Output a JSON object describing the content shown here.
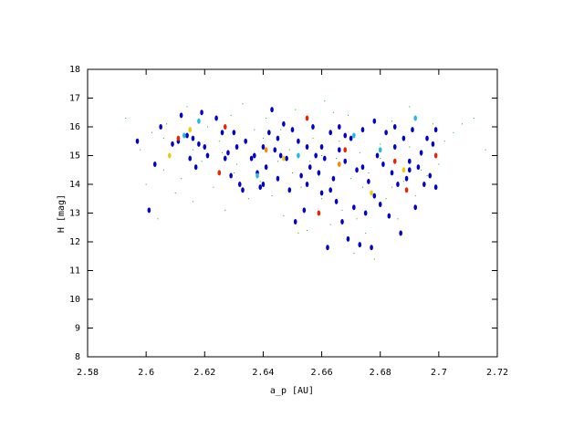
{
  "chart_data": {
    "type": "scatter",
    "x_label": "a_p [AU]",
    "y_label": "H [mag]",
    "xlim": [
      2.58,
      2.72
    ],
    "xticks": [
      2.58,
      2.6,
      2.62,
      2.64,
      2.66,
      2.68,
      2.7,
      2.72
    ],
    "ylim": [
      8,
      18
    ],
    "yticks": [
      8,
      9,
      10,
      11,
      12,
      13,
      14,
      15,
      16,
      17,
      18
    ],
    "series": [
      {
        "color": "#00bb00",
        "marker": "dot",
        "x": [
          2.593,
          2.598,
          2.6,
          2.602,
          2.604,
          2.606,
          2.607,
          2.61,
          2.612,
          2.614,
          2.616,
          2.619,
          2.621,
          2.623,
          2.625,
          2.627,
          2.629,
          2.631,
          2.633,
          2.635,
          2.637,
          2.639,
          2.641,
          2.643,
          2.645,
          2.647,
          2.649,
          2.651,
          2.653,
          2.655,
          2.657,
          2.659,
          2.661,
          2.663,
          2.665,
          2.667,
          2.669,
          2.671,
          2.673,
          2.675,
          2.676,
          2.678,
          2.68,
          2.682,
          2.684,
          2.686,
          2.688,
          2.69,
          2.692,
          2.694,
          2.696,
          2.698,
          2.7,
          2.702,
          2.705,
          2.708,
          2.712,
          2.716,
          2.65,
          2.66,
          2.67,
          2.62,
          2.63,
          2.64,
          2.68,
          2.69,
          2.66,
          2.646,
          2.666,
          2.674,
          2.656,
          2.636,
          2.626,
          2.616,
          2.684,
          2.694,
          2.664,
          2.672,
          2.652,
          2.606
        ],
        "values": [
          16.3,
          15.2,
          14.0,
          15.8,
          12.8,
          14.5,
          16.1,
          13.7,
          14.2,
          16.7,
          13.4,
          14.8,
          16.0,
          13.9,
          15.5,
          13.1,
          16.4,
          14.7,
          16.8,
          13.5,
          15.9,
          14.1,
          16.3,
          13.6,
          14.8,
          12.9,
          15.2,
          16.6,
          13.9,
          12.4,
          15.6,
          14.3,
          16.9,
          12.6,
          14.9,
          13.1,
          16.4,
          11.6,
          15.1,
          12.3,
          14.4,
          11.4,
          15.4,
          13.5,
          16.2,
          12.8,
          14.1,
          16.7,
          13.6,
          15.0,
          14.3,
          16.1,
          14.7,
          15.5,
          15.8,
          16.1,
          16.3,
          15.2,
          14.4,
          15.0,
          14.2,
          15.3,
          14.4,
          15.6,
          14.9,
          15.3,
          13.5,
          15.9,
          15.5,
          13.9,
          14.8,
          14.9,
          15.1,
          15.2,
          13.9,
          14.5,
          16.5,
          12.8,
          12.3,
          15.6
        ]
      },
      {
        "color": "#0000cc",
        "marker": "ellipse",
        "x": [
          2.597,
          2.601,
          2.603,
          2.605,
          2.609,
          2.611,
          2.612,
          2.614,
          2.615,
          2.616,
          2.617,
          2.618,
          2.619,
          2.62,
          2.621,
          2.624,
          2.626,
          2.627,
          2.628,
          2.629,
          2.631,
          2.632,
          2.633,
          2.634,
          2.636,
          2.637,
          2.638,
          2.639,
          2.64,
          2.641,
          2.642,
          2.643,
          2.644,
          2.645,
          2.646,
          2.647,
          2.648,
          2.649,
          2.65,
          2.651,
          2.652,
          2.653,
          2.654,
          2.655,
          2.656,
          2.657,
          2.658,
          2.659,
          2.66,
          2.661,
          2.662,
          2.663,
          2.664,
          2.665,
          2.666,
          2.667,
          2.668,
          2.669,
          2.67,
          2.671,
          2.672,
          2.673,
          2.674,
          2.675,
          2.676,
          2.677,
          2.678,
          2.679,
          2.68,
          2.681,
          2.682,
          2.683,
          2.684,
          2.685,
          2.686,
          2.687,
          2.688,
          2.689,
          2.69,
          2.691,
          2.692,
          2.693,
          2.694,
          2.695,
          2.696,
          2.697,
          2.698,
          2.699,
          2.699,
          2.663,
          2.668,
          2.674,
          2.666,
          2.655,
          2.645,
          2.678,
          2.685,
          2.69,
          2.66,
          2.64,
          2.63
        ],
        "values": [
          15.5,
          13.1,
          14.7,
          16.0,
          15.4,
          15.5,
          16.4,
          15.7,
          14.9,
          15.6,
          14.6,
          15.4,
          16.5,
          15.3,
          15.0,
          16.3,
          15.8,
          14.9,
          15.1,
          14.3,
          15.3,
          14.0,
          13.8,
          15.5,
          14.9,
          15.0,
          14.4,
          13.9,
          15.3,
          14.6,
          15.8,
          16.6,
          15.2,
          14.2,
          15.0,
          16.1,
          14.9,
          13.8,
          15.9,
          12.7,
          15.5,
          14.3,
          13.1,
          15.3,
          14.6,
          16.0,
          15.0,
          14.4,
          13.7,
          14.9,
          11.8,
          15.8,
          14.2,
          13.4,
          15.2,
          12.7,
          14.8,
          12.1,
          15.6,
          13.2,
          14.5,
          11.9,
          15.9,
          13.0,
          14.1,
          11.8,
          16.2,
          15.0,
          13.3,
          14.7,
          15.8,
          12.9,
          14.4,
          15.3,
          14.0,
          12.3,
          15.6,
          14.2,
          14.8,
          15.9,
          13.2,
          14.6,
          15.1,
          14.0,
          15.6,
          14.3,
          15.4,
          13.9,
          15.9,
          13.8,
          15.7,
          14.6,
          16.0,
          14.0,
          15.6,
          13.6,
          16.0,
          14.5,
          15.3,
          14.0,
          15.8
        ]
      },
      {
        "color": "#ee2200",
        "marker": "ellipse",
        "x": [
          2.611,
          2.627,
          2.625,
          2.655,
          2.659,
          2.668,
          2.685,
          2.689,
          2.699
        ],
        "values": [
          15.6,
          16.0,
          14.4,
          16.3,
          13.0,
          15.2,
          14.8,
          13.8,
          15.0
        ]
      },
      {
        "color": "#22bbdd",
        "marker": "ellipse",
        "x": [
          2.613,
          2.618,
          2.638,
          2.652,
          2.671,
          2.692,
          2.68
        ],
        "values": [
          15.7,
          16.2,
          14.3,
          15.0,
          15.7,
          16.3,
          15.2
        ]
      },
      {
        "color": "#eecc00",
        "marker": "ellipse",
        "x": [
          2.608,
          2.615,
          2.647,
          2.677,
          2.688
        ],
        "values": [
          15.0,
          15.9,
          14.9,
          13.7,
          14.5
        ]
      },
      {
        "color": "#ff8800",
        "marker": "ellipse",
        "x": [
          2.641,
          2.666
        ],
        "values": [
          15.2,
          14.7
        ]
      }
    ]
  }
}
